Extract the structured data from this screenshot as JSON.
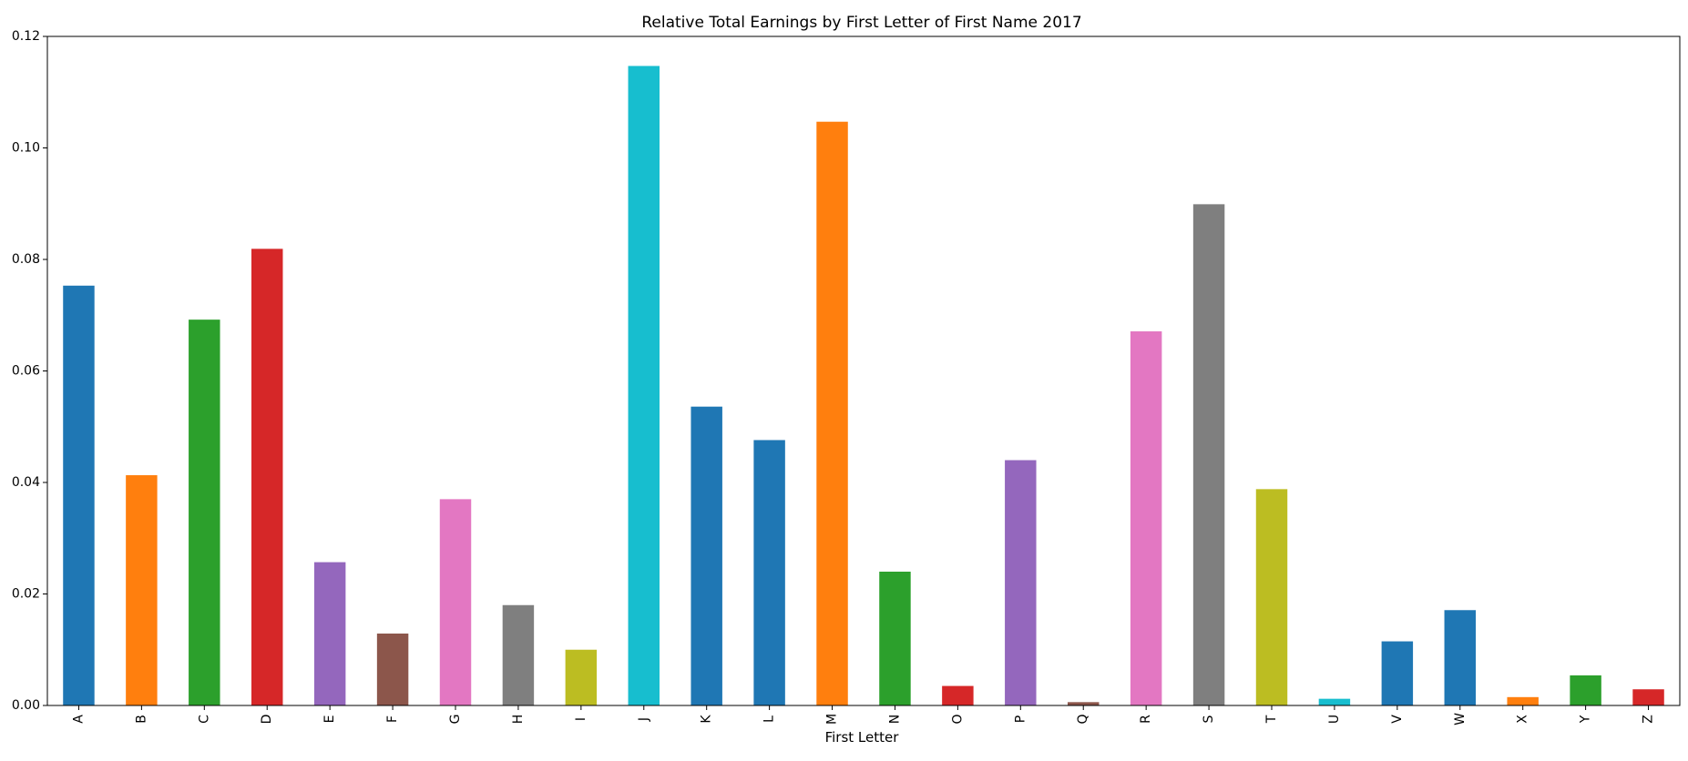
{
  "chart_data": {
    "type": "bar",
    "title": "Relative Total Earnings by First Letter of First Name 2017",
    "xlabel": "First Letter",
    "ylabel": "",
    "ylim": [
      0,
      0.12
    ],
    "yticks": [
      0,
      0.02,
      0.04,
      0.06,
      0.08,
      0.1,
      0.12
    ],
    "ytick_labels": [
      "0.00",
      "0.02",
      "0.04",
      "0.06",
      "0.08",
      "0.10",
      "0.12"
    ],
    "grid": false,
    "categories": [
      "A",
      "B",
      "C",
      "D",
      "E",
      "F",
      "G",
      "H",
      "I",
      "J",
      "K",
      "L",
      "M",
      "N",
      "O",
      "P",
      "Q",
      "R",
      "S",
      "T",
      "U",
      "V",
      "W",
      "X",
      "Y",
      "Z"
    ],
    "values": [
      0.0753,
      0.0413,
      0.0692,
      0.0819,
      0.0257,
      0.0129,
      0.037,
      0.018,
      0.01,
      0.1147,
      0.0536,
      0.0476,
      0.1047,
      0.024,
      0.0035,
      0.044,
      0.0006,
      0.0671,
      0.0899,
      0.0388,
      0.0012,
      0.0115,
      0.0171,
      0.0015,
      0.0054,
      0.0029
    ],
    "colors": [
      "#1f77b4",
      "#ff7f0e",
      "#2ca02c",
      "#d62728",
      "#9467bd",
      "#8c564b",
      "#e377c2",
      "#7f7f7f",
      "#bcbd22",
      "#17becf",
      "#1f77b4",
      "#1f77b4",
      "#ff7f0e",
      "#2ca02c",
      "#d62728",
      "#9467bd",
      "#8c564b",
      "#e377c2",
      "#7f7f7f",
      "#bcbd22",
      "#17becf",
      "#1f77b4",
      "#1f77b4",
      "#ff7f0e",
      "#2ca02c",
      "#d62728"
    ]
  }
}
